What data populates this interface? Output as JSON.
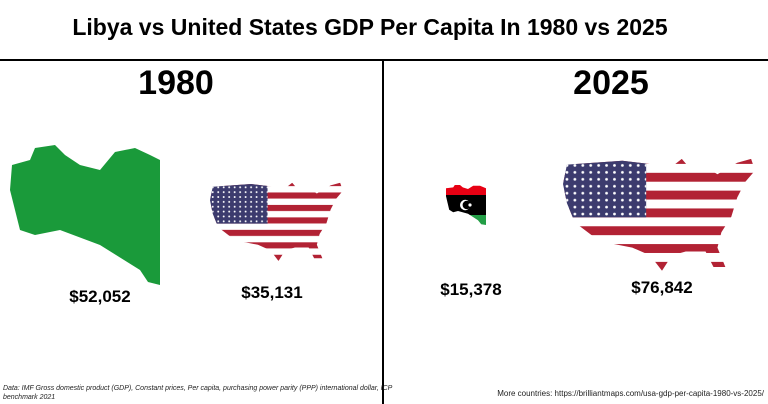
{
  "title": "Libya vs United States GDP Per Capita In 1980 vs 2025",
  "panels": [
    {
      "year": "1980",
      "items": [
        {
          "value": "$52,052"
        },
        {
          "value": "$35,131"
        }
      ]
    },
    {
      "year": "2025",
      "items": [
        {
          "value": "$15,378"
        },
        {
          "value": "$76,842"
        }
      ]
    }
  ],
  "footer": {
    "source_line1": "Data: IMF Gross domestic product (GDP), Constant prices, Per capita, purchasing power parity (PPP) international dollar, ICP",
    "source_line2": "benchmark 2021",
    "more": "More countries: https://brilliantmaps.com/usa-gdp-per-capita-1980-vs-2025/"
  }
}
